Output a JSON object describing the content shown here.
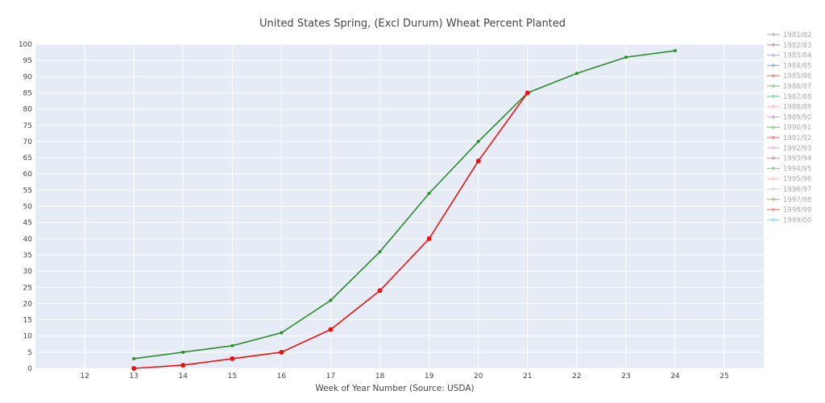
{
  "chart_data": {
    "type": "line",
    "title": "United States Spring, (Excl Durum) Wheat Percent Planted",
    "xlabel": "Week of Year Number     (Source: USDA)",
    "ylabel": "",
    "xlim": [
      11.0,
      25.8
    ],
    "ylim": [
      0,
      100
    ],
    "x_ticks": [
      12,
      13,
      14,
      15,
      16,
      17,
      18,
      19,
      20,
      21,
      22,
      23,
      24,
      25
    ],
    "y_ticks": [
      0,
      5,
      10,
      15,
      20,
      25,
      30,
      35,
      40,
      45,
      50,
      55,
      60,
      65,
      70,
      75,
      80,
      85,
      90,
      95,
      100
    ],
    "grid": true,
    "legend_position": "right",
    "legend_entries": [
      {
        "name": "1981/82",
        "color": "#7f7f7f"
      },
      {
        "name": "1982/83",
        "color": "#8c564b"
      },
      {
        "name": "1983/84",
        "color": "#9467bd"
      },
      {
        "name": "1984/85",
        "color": "#1f77b4"
      },
      {
        "name": "1985/86",
        "color": "#d62728"
      },
      {
        "name": "1986/87",
        "color": "#2ca02c"
      },
      {
        "name": "1987/88",
        "color": "#00cc44"
      },
      {
        "name": "1988/89",
        "color": "#e377c2"
      },
      {
        "name": "1989/90",
        "color": "#9467bd"
      },
      {
        "name": "1990/91",
        "color": "#2ca02c"
      },
      {
        "name": "1991/92",
        "color": "#d62728"
      },
      {
        "name": "1992/93",
        "color": "#e377c2"
      },
      {
        "name": "1993/94",
        "color": "#8c564b"
      },
      {
        "name": "1994/95",
        "color": "#2ca02c"
      },
      {
        "name": "1995/96",
        "color": "#ff9896"
      },
      {
        "name": "1996/97",
        "color": "#c5b0d5"
      },
      {
        "name": "1997/98",
        "color": "#6b8e23"
      },
      {
        "name": "1998/99",
        "color": "#d62728"
      },
      {
        "name": "1999/00",
        "color": "#17becf"
      }
    ],
    "series": [
      {
        "color": "#2e8b2e",
        "x": [
          13,
          14,
          15,
          16,
          17,
          18,
          19,
          20,
          21,
          22,
          23,
          24
        ],
        "y": [
          3,
          5,
          7,
          11,
          21,
          36,
          54,
          70,
          85,
          91,
          96,
          98
        ]
      },
      {
        "color": "#ee1111",
        "x": [
          13,
          14,
          15,
          16,
          17,
          18,
          19,
          20,
          21
        ],
        "y": [
          0,
          1,
          3,
          5,
          12,
          24,
          40,
          64,
          85
        ]
      }
    ]
  }
}
